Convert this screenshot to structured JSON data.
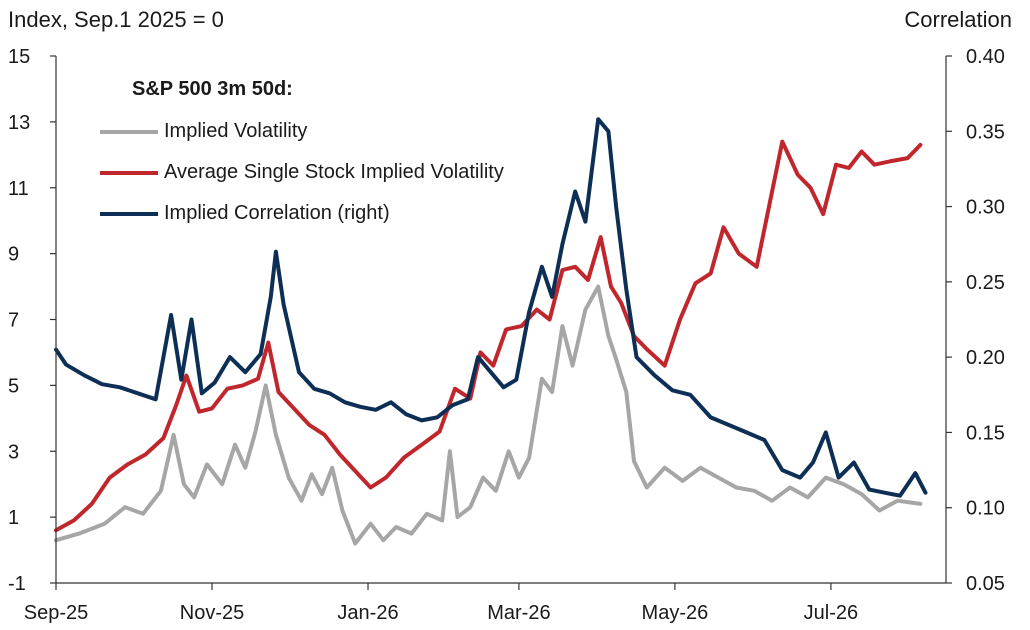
{
  "chart_data": {
    "type": "line",
    "left_axis_title": "Index, Sep.1 2025 = 0",
    "right_axis_title": "Correlation",
    "legend_title": "S&P 500 3m 50d:",
    "left_axis": {
      "ylim": [
        -1,
        15
      ],
      "ticks": [
        "15",
        "13",
        "11",
        "9",
        "7",
        "5",
        "3",
        "1",
        "-1"
      ]
    },
    "right_axis": {
      "ylim": [
        0.05,
        0.4
      ],
      "ticks": [
        "0.40",
        "0.35",
        "0.30",
        "0.25",
        "0.20",
        "0.15",
        "0.10",
        "0.05"
      ]
    },
    "x_ticks": [
      "Sep-25",
      "Nov-25",
      "Jan-26",
      "Mar-26",
      "May-26",
      "Jul-26"
    ],
    "x_tick_dates": [
      "2025-09-01",
      "2025-11-01",
      "2026-01-01",
      "2026-03-01",
      "2026-05-01",
      "2026-07-01"
    ],
    "x_range": [
      "2025-09-01",
      "2026-08-15"
    ],
    "legend_position": "top-left",
    "grid": false,
    "series": [
      {
        "name": "Implied Volatility",
        "axis": "left",
        "color": "#a6a6a6",
        "points": [
          [
            "2025-09-01",
            0.3
          ],
          [
            "2025-09-10",
            0.5
          ],
          [
            "2025-09-20",
            0.8
          ],
          [
            "2025-09-28",
            1.3
          ],
          [
            "2025-10-05",
            1.1
          ],
          [
            "2025-10-12",
            1.8
          ],
          [
            "2025-10-17",
            3.5
          ],
          [
            "2025-10-21",
            2.0
          ],
          [
            "2025-10-25",
            1.6
          ],
          [
            "2025-10-30",
            2.6
          ],
          [
            "2025-11-05",
            2.0
          ],
          [
            "2025-11-10",
            3.2
          ],
          [
            "2025-11-14",
            2.5
          ],
          [
            "2025-11-18",
            3.6
          ],
          [
            "2025-11-22",
            5.0
          ],
          [
            "2025-11-26",
            3.5
          ],
          [
            "2025-12-01",
            2.2
          ],
          [
            "2025-12-06",
            1.5
          ],
          [
            "2025-12-10",
            2.3
          ],
          [
            "2025-12-14",
            1.7
          ],
          [
            "2025-12-18",
            2.5
          ],
          [
            "2025-12-22",
            1.2
          ],
          [
            "2025-12-27",
            0.2
          ],
          [
            "2026-01-02",
            0.8
          ],
          [
            "2026-01-07",
            0.3
          ],
          [
            "2026-01-12",
            0.7
          ],
          [
            "2026-01-18",
            0.5
          ],
          [
            "2026-01-24",
            1.1
          ],
          [
            "2026-01-30",
            0.9
          ],
          [
            "2026-02-02",
            3.0
          ],
          [
            "2026-02-05",
            1.0
          ],
          [
            "2026-02-10",
            1.3
          ],
          [
            "2026-02-15",
            2.2
          ],
          [
            "2026-02-20",
            1.8
          ],
          [
            "2026-02-25",
            3.0
          ],
          [
            "2026-03-01",
            2.2
          ],
          [
            "2026-03-05",
            2.8
          ],
          [
            "2026-03-10",
            5.2
          ],
          [
            "2026-03-14",
            4.8
          ],
          [
            "2026-03-18",
            6.8
          ],
          [
            "2026-03-22",
            5.6
          ],
          [
            "2026-03-27",
            7.3
          ],
          [
            "2026-04-01",
            8.0
          ],
          [
            "2026-04-05",
            6.5
          ],
          [
            "2026-04-08",
            5.8
          ],
          [
            "2026-04-12",
            4.8
          ],
          [
            "2026-04-15",
            2.7
          ],
          [
            "2026-04-20",
            1.9
          ],
          [
            "2026-04-27",
            2.5
          ],
          [
            "2026-05-04",
            2.1
          ],
          [
            "2026-05-11",
            2.5
          ],
          [
            "2026-05-18",
            2.2
          ],
          [
            "2026-05-25",
            1.9
          ],
          [
            "2026-06-01",
            1.8
          ],
          [
            "2026-06-08",
            1.5
          ],
          [
            "2026-06-15",
            1.9
          ],
          [
            "2026-06-22",
            1.6
          ],
          [
            "2026-06-29",
            2.2
          ],
          [
            "2026-07-06",
            2.0
          ],
          [
            "2026-07-13",
            1.7
          ],
          [
            "2026-07-20",
            1.2
          ],
          [
            "2026-07-27",
            1.5
          ],
          [
            "2026-08-05",
            1.4
          ]
        ]
      },
      {
        "name": "Average Single Stock Implied Volatility",
        "axis": "left",
        "color": "#c0272d",
        "points": [
          [
            "2025-09-01",
            0.6
          ],
          [
            "2025-09-08",
            0.9
          ],
          [
            "2025-09-15",
            1.4
          ],
          [
            "2025-09-22",
            2.2
          ],
          [
            "2025-09-29",
            2.6
          ],
          [
            "2025-10-06",
            2.9
          ],
          [
            "2025-10-13",
            3.4
          ],
          [
            "2025-10-18",
            4.4
          ],
          [
            "2025-10-22",
            5.3
          ],
          [
            "2025-10-27",
            4.2
          ],
          [
            "2025-11-01",
            4.3
          ],
          [
            "2025-11-07",
            4.9
          ],
          [
            "2025-11-13",
            5.0
          ],
          [
            "2025-11-19",
            5.2
          ],
          [
            "2025-11-23",
            6.3
          ],
          [
            "2025-11-27",
            4.8
          ],
          [
            "2025-12-03",
            4.3
          ],
          [
            "2025-12-09",
            3.8
          ],
          [
            "2025-12-15",
            3.5
          ],
          [
            "2025-12-21",
            2.9
          ],
          [
            "2025-12-27",
            2.4
          ],
          [
            "2026-01-02",
            1.9
          ],
          [
            "2026-01-08",
            2.2
          ],
          [
            "2026-01-15",
            2.8
          ],
          [
            "2026-01-22",
            3.2
          ],
          [
            "2026-01-29",
            3.6
          ],
          [
            "2026-02-04",
            4.9
          ],
          [
            "2026-02-10",
            4.6
          ],
          [
            "2026-02-14",
            6.0
          ],
          [
            "2026-02-19",
            5.6
          ],
          [
            "2026-02-24",
            6.7
          ],
          [
            "2026-03-02",
            6.8
          ],
          [
            "2026-03-08",
            7.3
          ],
          [
            "2026-03-13",
            7.0
          ],
          [
            "2026-03-18",
            8.5
          ],
          [
            "2026-03-23",
            8.6
          ],
          [
            "2026-03-28",
            8.2
          ],
          [
            "2026-04-02",
            9.5
          ],
          [
            "2026-04-06",
            8.0
          ],
          [
            "2026-04-10",
            7.5
          ],
          [
            "2026-04-15",
            6.5
          ],
          [
            "2026-04-20",
            6.1
          ],
          [
            "2026-04-27",
            5.6
          ],
          [
            "2026-05-03",
            7.0
          ],
          [
            "2026-05-09",
            8.1
          ],
          [
            "2026-05-15",
            8.4
          ],
          [
            "2026-05-20",
            9.8
          ],
          [
            "2026-05-26",
            9.0
          ],
          [
            "2026-06-02",
            8.6
          ],
          [
            "2026-06-07",
            10.5
          ],
          [
            "2026-06-12",
            12.4
          ],
          [
            "2026-06-18",
            11.4
          ],
          [
            "2026-06-23",
            11.0
          ],
          [
            "2026-06-28",
            10.2
          ],
          [
            "2026-07-03",
            11.7
          ],
          [
            "2026-07-08",
            11.6
          ],
          [
            "2026-07-13",
            12.1
          ],
          [
            "2026-07-18",
            11.7
          ],
          [
            "2026-07-24",
            11.8
          ],
          [
            "2026-07-31",
            11.9
          ],
          [
            "2026-08-05",
            12.3
          ]
        ]
      },
      {
        "name": "Implied Correlation (right)",
        "axis": "right",
        "color": "#0d2f55",
        "points": [
          [
            "2025-09-01",
            0.205
          ],
          [
            "2025-09-05",
            0.195
          ],
          [
            "2025-09-12",
            0.188
          ],
          [
            "2025-09-19",
            0.182
          ],
          [
            "2025-09-26",
            0.18
          ],
          [
            "2025-10-03",
            0.176
          ],
          [
            "2025-10-10",
            0.172
          ],
          [
            "2025-10-16",
            0.228
          ],
          [
            "2025-10-20",
            0.185
          ],
          [
            "2025-10-24",
            0.225
          ],
          [
            "2025-10-28",
            0.176
          ],
          [
            "2025-11-02",
            0.183
          ],
          [
            "2025-11-08",
            0.2
          ],
          [
            "2025-11-14",
            0.19
          ],
          [
            "2025-11-20",
            0.202
          ],
          [
            "2025-11-24",
            0.24
          ],
          [
            "2025-11-26",
            0.27
          ],
          [
            "2025-11-29",
            0.235
          ],
          [
            "2025-12-05",
            0.19
          ],
          [
            "2025-12-11",
            0.179
          ],
          [
            "2025-12-17",
            0.176
          ],
          [
            "2025-12-23",
            0.17
          ],
          [
            "2025-12-29",
            0.167
          ],
          [
            "2026-01-04",
            0.165
          ],
          [
            "2026-01-10",
            0.17
          ],
          [
            "2026-01-16",
            0.162
          ],
          [
            "2026-01-22",
            0.158
          ],
          [
            "2026-01-28",
            0.16
          ],
          [
            "2026-02-03",
            0.168
          ],
          [
            "2026-02-09",
            0.172
          ],
          [
            "2026-02-13",
            0.2
          ],
          [
            "2026-02-18",
            0.19
          ],
          [
            "2026-02-23",
            0.18
          ],
          [
            "2026-02-28",
            0.185
          ],
          [
            "2026-03-05",
            0.23
          ],
          [
            "2026-03-10",
            0.26
          ],
          [
            "2026-03-14",
            0.24
          ],
          [
            "2026-03-18",
            0.275
          ],
          [
            "2026-03-23",
            0.31
          ],
          [
            "2026-03-27",
            0.29
          ],
          [
            "2026-04-01",
            0.358
          ],
          [
            "2026-04-05",
            0.35
          ],
          [
            "2026-04-08",
            0.3
          ],
          [
            "2026-04-12",
            0.245
          ],
          [
            "2026-04-16",
            0.2
          ],
          [
            "2026-04-23",
            0.188
          ],
          [
            "2026-04-30",
            0.178
          ],
          [
            "2026-05-07",
            0.175
          ],
          [
            "2026-05-15",
            0.16
          ],
          [
            "2026-05-22",
            0.155
          ],
          [
            "2026-05-29",
            0.15
          ],
          [
            "2026-06-05",
            0.145
          ],
          [
            "2026-06-12",
            0.125
          ],
          [
            "2026-06-19",
            0.12
          ],
          [
            "2026-06-24",
            0.13
          ],
          [
            "2026-06-29",
            0.15
          ],
          [
            "2026-07-04",
            0.12
          ],
          [
            "2026-07-10",
            0.13
          ],
          [
            "2026-07-16",
            0.112
          ],
          [
            "2026-07-22",
            0.11
          ],
          [
            "2026-07-28",
            0.108
          ],
          [
            "2026-08-03",
            0.123
          ],
          [
            "2026-08-07",
            0.11
          ]
        ]
      }
    ]
  }
}
